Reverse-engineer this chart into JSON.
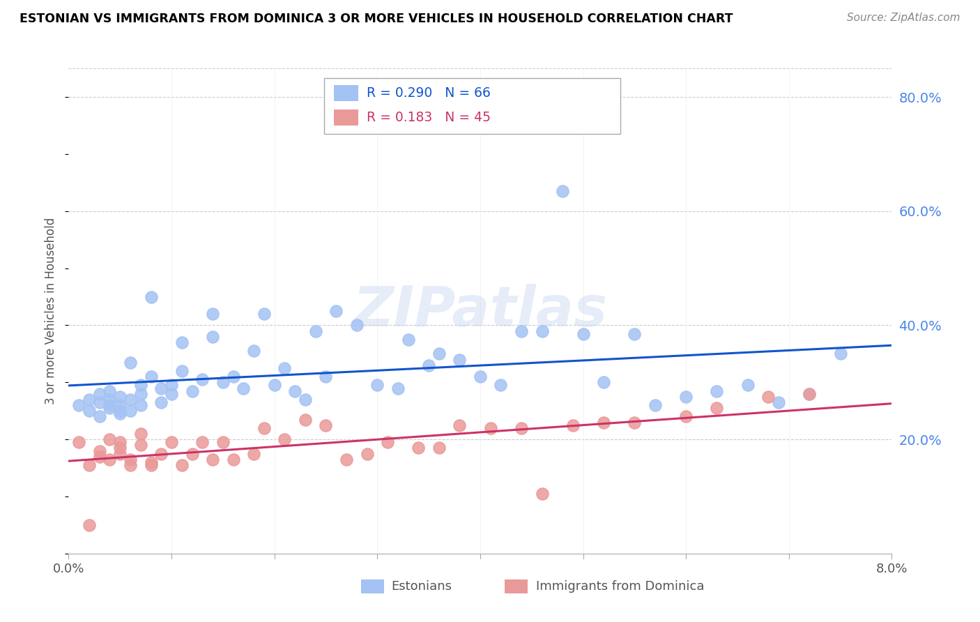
{
  "title": "ESTONIAN VS IMMIGRANTS FROM DOMINICA 3 OR MORE VEHICLES IN HOUSEHOLD CORRELATION CHART",
  "source": "Source: ZipAtlas.com",
  "ylabel": "3 or more Vehicles in Household",
  "x_min": 0.0,
  "x_max": 0.08,
  "y_min": 0.0,
  "y_max": 0.85,
  "y_ticks": [
    0.2,
    0.4,
    0.6,
    0.8
  ],
  "y_tick_labels": [
    "20.0%",
    "40.0%",
    "60.0%",
    "80.0%"
  ],
  "estonian_R": 0.29,
  "estonian_N": 66,
  "dominica_R": 0.183,
  "dominica_N": 45,
  "estonian_color": "#a4c2f4",
  "dominica_color": "#ea9999",
  "estonian_line_color": "#1155cc",
  "dominica_line_color": "#cc3366",
  "legend_label_estonian": "Estonians",
  "legend_label_dominica": "Immigrants from Dominica",
  "watermark": "ZIPatlas",
  "background_color": "#ffffff",
  "grid_color": "#cccccc",
  "right_axis_color": "#4a86e8",
  "title_color": "#000000",
  "source_color": "#888888",
  "est_x": [
    0.001,
    0.002,
    0.002,
    0.003,
    0.003,
    0.003,
    0.004,
    0.004,
    0.004,
    0.004,
    0.005,
    0.005,
    0.005,
    0.005,
    0.006,
    0.006,
    0.006,
    0.007,
    0.007,
    0.007,
    0.008,
    0.008,
    0.009,
    0.009,
    0.01,
    0.01,
    0.011,
    0.011,
    0.012,
    0.013,
    0.014,
    0.014,
    0.015,
    0.016,
    0.017,
    0.018,
    0.019,
    0.02,
    0.021,
    0.022,
    0.023,
    0.024,
    0.025,
    0.026,
    0.028,
    0.03,
    0.032,
    0.033,
    0.035,
    0.036,
    0.038,
    0.04,
    0.042,
    0.044,
    0.046,
    0.048,
    0.05,
    0.052,
    0.055,
    0.057,
    0.06,
    0.063,
    0.066,
    0.069,
    0.072,
    0.075
  ],
  "est_y": [
    0.26,
    0.25,
    0.27,
    0.28,
    0.265,
    0.24,
    0.255,
    0.27,
    0.26,
    0.285,
    0.25,
    0.26,
    0.275,
    0.245,
    0.335,
    0.27,
    0.25,
    0.295,
    0.26,
    0.28,
    0.45,
    0.31,
    0.29,
    0.265,
    0.295,
    0.28,
    0.37,
    0.32,
    0.285,
    0.305,
    0.38,
    0.42,
    0.3,
    0.31,
    0.29,
    0.355,
    0.42,
    0.295,
    0.325,
    0.285,
    0.27,
    0.39,
    0.31,
    0.425,
    0.4,
    0.295,
    0.29,
    0.375,
    0.33,
    0.35,
    0.34,
    0.31,
    0.295,
    0.39,
    0.39,
    0.635,
    0.385,
    0.3,
    0.385,
    0.26,
    0.275,
    0.285,
    0.295,
    0.265,
    0.28,
    0.35
  ],
  "dom_x": [
    0.001,
    0.002,
    0.002,
    0.003,
    0.003,
    0.004,
    0.004,
    0.005,
    0.005,
    0.005,
    0.006,
    0.006,
    0.007,
    0.007,
    0.008,
    0.008,
    0.009,
    0.01,
    0.011,
    0.012,
    0.013,
    0.014,
    0.015,
    0.016,
    0.018,
    0.019,
    0.021,
    0.023,
    0.025,
    0.027,
    0.029,
    0.031,
    0.034,
    0.036,
    0.038,
    0.041,
    0.044,
    0.046,
    0.049,
    0.052,
    0.055,
    0.06,
    0.063,
    0.068,
    0.072
  ],
  "dom_y": [
    0.195,
    0.05,
    0.155,
    0.18,
    0.17,
    0.2,
    0.165,
    0.195,
    0.185,
    0.175,
    0.165,
    0.155,
    0.21,
    0.19,
    0.155,
    0.16,
    0.175,
    0.195,
    0.155,
    0.175,
    0.195,
    0.165,
    0.195,
    0.165,
    0.175,
    0.22,
    0.2,
    0.235,
    0.225,
    0.165,
    0.175,
    0.195,
    0.185,
    0.185,
    0.225,
    0.22,
    0.22,
    0.105,
    0.225,
    0.23,
    0.23,
    0.24,
    0.255,
    0.275,
    0.28
  ]
}
